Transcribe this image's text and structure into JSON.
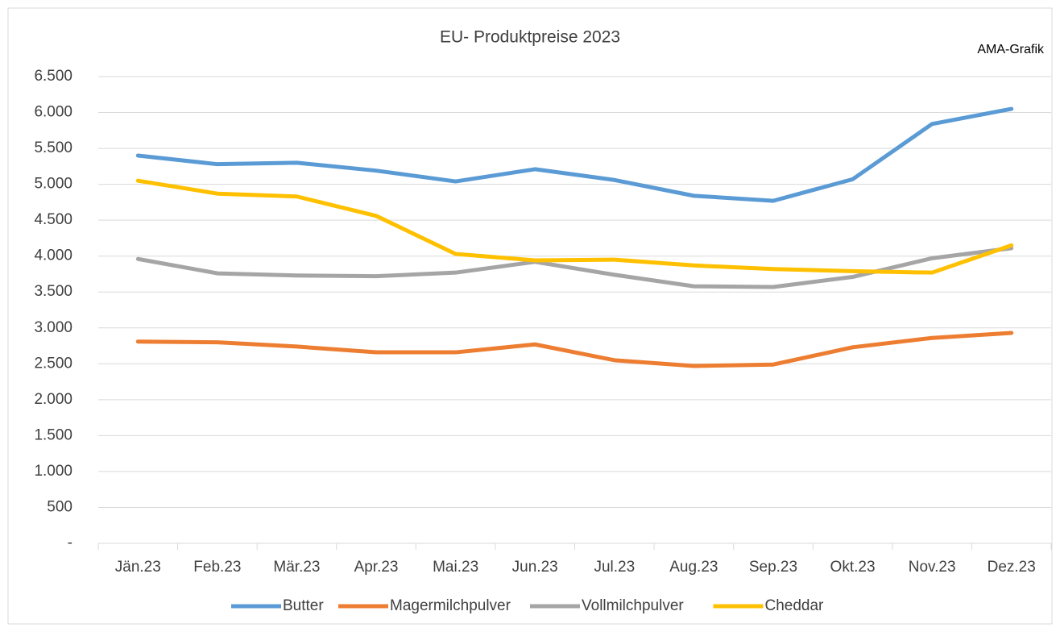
{
  "chart_data": {
    "type": "line",
    "title": "EU- Produktpreise 2023",
    "annotation": "AMA-Grafik",
    "categories": [
      "Jän.23",
      "Feb.23",
      "Mär.23",
      "Apr.23",
      "Mai.23",
      "Jun.23",
      "Jul.23",
      "Aug.23",
      "Sep.23",
      "Okt.23",
      "Nov.23",
      "Dez.23"
    ],
    "series": [
      {
        "name": "Butter",
        "color": "#5b9bd5",
        "values": [
          5400,
          5280,
          5300,
          5190,
          5040,
          5210,
          5060,
          4840,
          4770,
          5070,
          5840,
          6050
        ]
      },
      {
        "name": "Magermilchpulver",
        "color": "#ed7d31",
        "values": [
          2810,
          2800,
          2740,
          2660,
          2660,
          2770,
          2550,
          2470,
          2490,
          2730,
          2860,
          2930
        ]
      },
      {
        "name": "Vollmilchpulver",
        "color": "#a5a5a5",
        "values": [
          3960,
          3760,
          3730,
          3720,
          3770,
          3920,
          3740,
          3580,
          3570,
          3710,
          3970,
          4110
        ]
      },
      {
        "name": "Cheddar",
        "color": "#ffc000",
        "values": [
          5050,
          4870,
          4830,
          4560,
          4030,
          3940,
          3950,
          3870,
          3820,
          3790,
          3770,
          4150
        ]
      }
    ],
    "ylim": [
      0,
      6500
    ],
    "yticks": [
      {
        "value": 0,
        "label": "-"
      },
      500,
      {
        "value": 1000,
        "label": "1.000"
      },
      {
        "value": 1500,
        "label": "1.500"
      },
      {
        "value": 2000,
        "label": "2.000"
      },
      {
        "value": 2500,
        "label": "2.500"
      },
      {
        "value": 3000,
        "label": "3.000"
      },
      {
        "value": 3500,
        "label": "3.500"
      },
      {
        "value": 4000,
        "label": "4.000"
      },
      {
        "value": 4500,
        "label": "4.500"
      },
      {
        "value": 5000,
        "label": "5.000"
      },
      {
        "value": 5500,
        "label": "5.500"
      },
      {
        "value": 6000,
        "label": "6.000"
      },
      {
        "value": 6500,
        "label": "6.500"
      }
    ],
    "grid": true,
    "legend": "bottom"
  }
}
